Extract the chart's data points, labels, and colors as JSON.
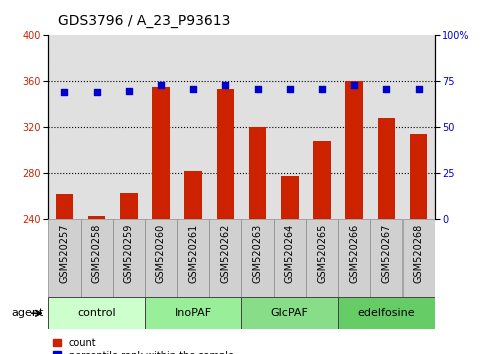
{
  "title": "GDS3796 / A_23_P93613",
  "samples": [
    "GSM520257",
    "GSM520258",
    "GSM520259",
    "GSM520260",
    "GSM520261",
    "GSM520262",
    "GSM520263",
    "GSM520264",
    "GSM520265",
    "GSM520266",
    "GSM520267",
    "GSM520268"
  ],
  "counts": [
    262,
    243,
    263,
    355,
    282,
    353,
    320,
    278,
    308,
    360,
    328,
    314
  ],
  "percentiles": [
    69,
    69,
    70,
    73,
    71,
    73,
    71,
    71,
    71,
    73,
    71,
    71
  ],
  "groups": [
    {
      "label": "control",
      "indices": [
        0,
        1,
        2
      ],
      "color": "#ccffcc"
    },
    {
      "label": "InoPAF",
      "indices": [
        3,
        4,
        5
      ],
      "color": "#99ee99"
    },
    {
      "label": "GlcPAF",
      "indices": [
        6,
        7,
        8
      ],
      "color": "#88dd88"
    },
    {
      "label": "edelfosine",
      "indices": [
        9,
        10,
        11
      ],
      "color": "#66cc66"
    }
  ],
  "bar_color": "#cc2200",
  "square_color": "#0000cc",
  "ylim_left": [
    240,
    400
  ],
  "ylim_right": [
    0,
    100
  ],
  "yticks_left": [
    240,
    280,
    320,
    360,
    400
  ],
  "yticks_right": [
    0,
    25,
    50,
    75,
    100
  ],
  "yticklabels_right": [
    "0",
    "25",
    "50",
    "75",
    "100%"
  ],
  "bar_width": 0.55,
  "plot_bg_color": "#e0e0e0",
  "sample_box_color": "#d0d0d0",
  "title_fontsize": 10,
  "tick_fontsize": 7,
  "label_fontsize": 8,
  "group_label_fontsize": 8
}
